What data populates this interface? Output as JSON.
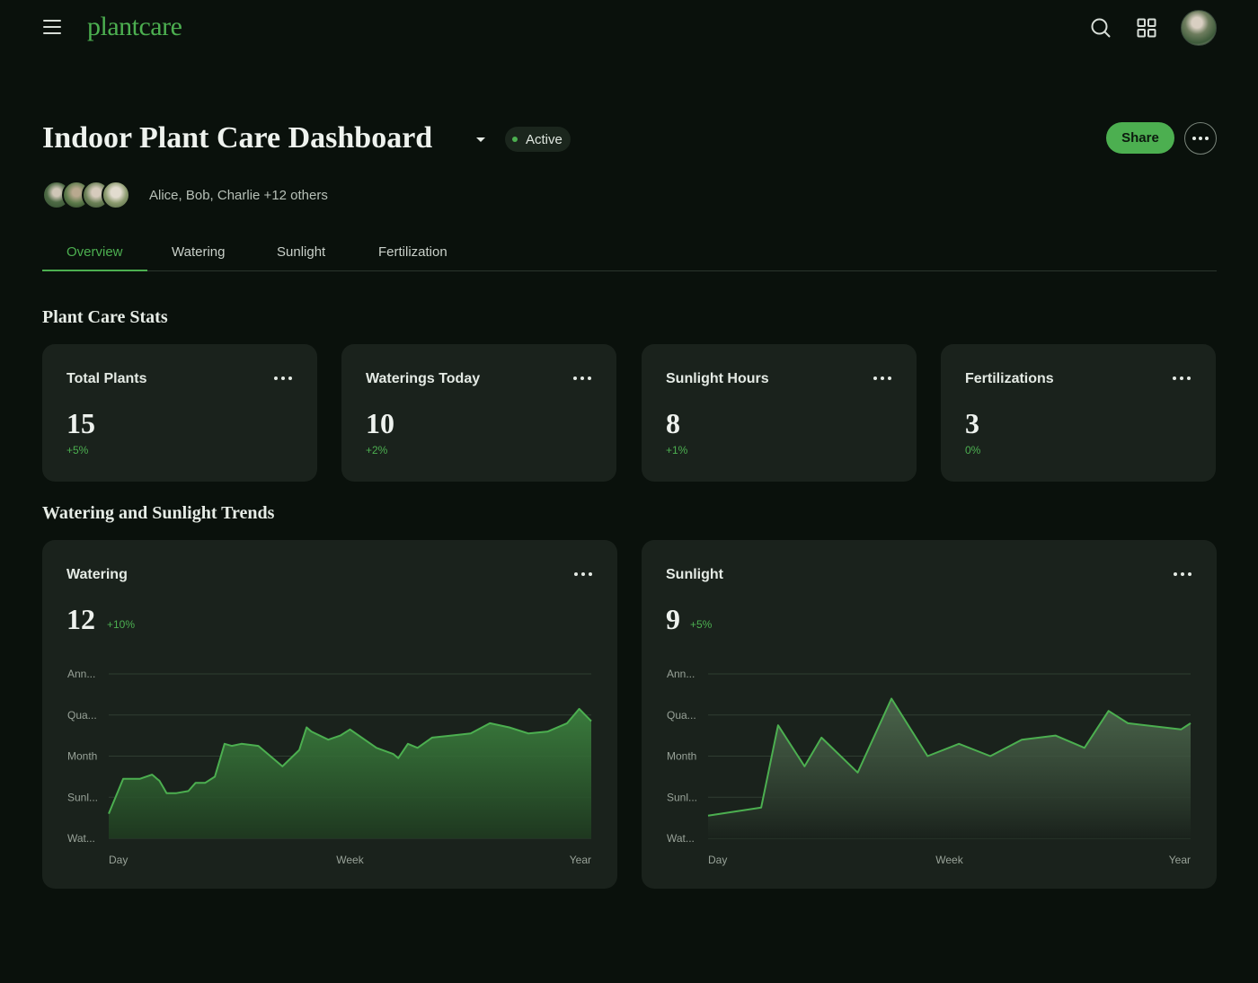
{
  "app": {
    "name": "plantcare"
  },
  "topbar": {
    "icons": [
      "menu-icon",
      "search-icon",
      "grid-icon",
      "avatar"
    ]
  },
  "header": {
    "title": "Indoor Plant Care Dashboard",
    "status": "Active",
    "share_label": "Share",
    "collaborators_text": "Alice, Bob, Charlie +12 others"
  },
  "tabs": [
    {
      "label": "Overview",
      "active": true
    },
    {
      "label": "Watering",
      "active": false
    },
    {
      "label": "Sunlight",
      "active": false
    },
    {
      "label": "Fertilization",
      "active": false
    }
  ],
  "sections": {
    "stats_title": "Plant Care Stats",
    "trends_title": "Watering and Sunlight Trends"
  },
  "stats": [
    {
      "label": "Total Plants",
      "value": "15",
      "change": "+5%"
    },
    {
      "label": "Waterings Today",
      "value": "10",
      "change": "+2%"
    },
    {
      "label": "Sunlight Hours",
      "value": "8",
      "change": "+1%"
    },
    {
      "label": "Fertilizations",
      "value": "3",
      "change": "0%"
    }
  ],
  "colors": {
    "accent": "#4caf50",
    "background": "#0a110c",
    "card": "#1a221c"
  },
  "chart_data": [
    {
      "type": "area",
      "title": "Watering",
      "value": "12",
      "change": "+10%",
      "y_tick_labels": [
        "Ann...",
        "Qua...",
        "Month",
        "Sunl...",
        "Wat..."
      ],
      "x_tick_labels": [
        "Day",
        "Week",
        "Year"
      ],
      "ylim": [
        0,
        4
      ],
      "grid": true,
      "x": [
        0,
        0.03,
        0.065,
        0.09,
        0.095,
        0.1,
        0.105,
        0.11,
        0.115,
        0.12,
        0.14,
        0.165,
        0.18,
        0.2,
        0.22,
        0.24,
        0.255,
        0.275,
        0.31,
        0.36,
        0.395,
        0.41,
        0.42,
        0.455,
        0.48,
        0.5,
        0.555,
        0.59,
        0.6,
        0.62,
        0.64,
        0.67,
        0.71,
        0.75,
        0.79,
        0.83,
        0.87,
        0.91,
        0.95,
        0.975,
        1
      ],
      "y": [
        0.6,
        1.45,
        1.45,
        1.55,
        1.5,
        1.45,
        1.4,
        1.3,
        1.2,
        1.1,
        1.1,
        1.15,
        1.35,
        1.35,
        1.5,
        2.3,
        2.25,
        2.3,
        2.25,
        1.75,
        2.15,
        2.7,
        2.6,
        2.4,
        2.5,
        2.65,
        2.2,
        2.05,
        1.95,
        2.3,
        2.2,
        2.45,
        2.5,
        2.55,
        2.8,
        2.7,
        2.55,
        2.6,
        2.8,
        3.15,
        2.85
      ]
    },
    {
      "type": "area",
      "title": "Sunlight",
      "value": "9",
      "change": "+5%",
      "y_tick_labels": [
        "Ann...",
        "Qua...",
        "Month",
        "Sunl...",
        "Wat..."
      ],
      "x_tick_labels": [
        "Day",
        "Week",
        "Year"
      ],
      "ylim": [
        0,
        4
      ],
      "grid": true,
      "x": [
        0,
        0.11,
        0.145,
        0.2,
        0.235,
        0.31,
        0.38,
        0.455,
        0.52,
        0.585,
        0.65,
        0.72,
        0.78,
        0.83,
        0.87,
        0.98,
        1
      ],
      "y": [
        0.55,
        0.75,
        2.75,
        1.75,
        2.45,
        1.6,
        3.4,
        2.0,
        2.3,
        2.0,
        2.4,
        2.5,
        2.2,
        3.1,
        2.8,
        2.65,
        2.8
      ]
    }
  ]
}
